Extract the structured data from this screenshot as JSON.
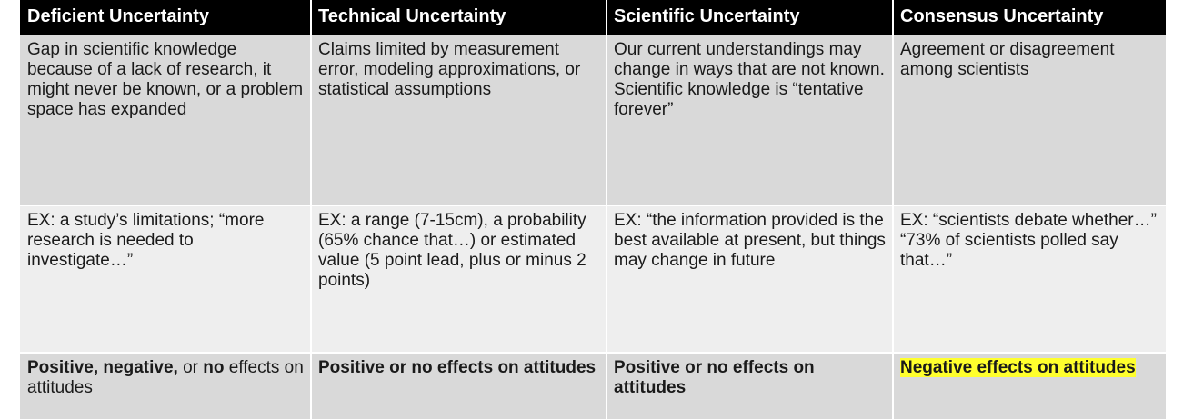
{
  "table": {
    "headers": [
      "Deficient Uncertainty",
      "Technical Uncertainty",
      "Scientific Uncertainty",
      "Consensus Uncertainty"
    ],
    "definitions": [
      "Gap in scientific knowledge because of a lack of research, it might never be known, or a problem space has expanded",
      "Claims limited by measurement error, modeling approximations, or statistical assumptions",
      "Our current understandings may change in ways that are not known. Scientific knowledge is “tentative forever”",
      "Agreement or disagreement among scientists"
    ],
    "examples": [
      "EX: a study’s limitations; “more research is needed to investigate…”",
      "EX: a range (7-15cm), a probability (65% chance that…) or estimated value (5 point lead, plus or minus 2 points)",
      "EX: “the information provided is the best available at present, but things may change in future",
      "EX: “scientists debate whether…” “73% of scientists polled say that…”"
    ],
    "effects": {
      "deficient": {
        "a": "Positive, negative,",
        "b": " or ",
        "c": "no",
        "d": " effects on attitudes"
      },
      "technical": "Positive or no effects on attitudes",
      "scientific": "Positive or no effects on attitudes",
      "consensus": "Negative effects on attitudes"
    },
    "colors": {
      "header_bg": "#000000",
      "header_text": "#ffffff",
      "row_dark": "#d9d9d9",
      "row_light": "#eeeeee",
      "highlight": "#ffff2d"
    }
  }
}
